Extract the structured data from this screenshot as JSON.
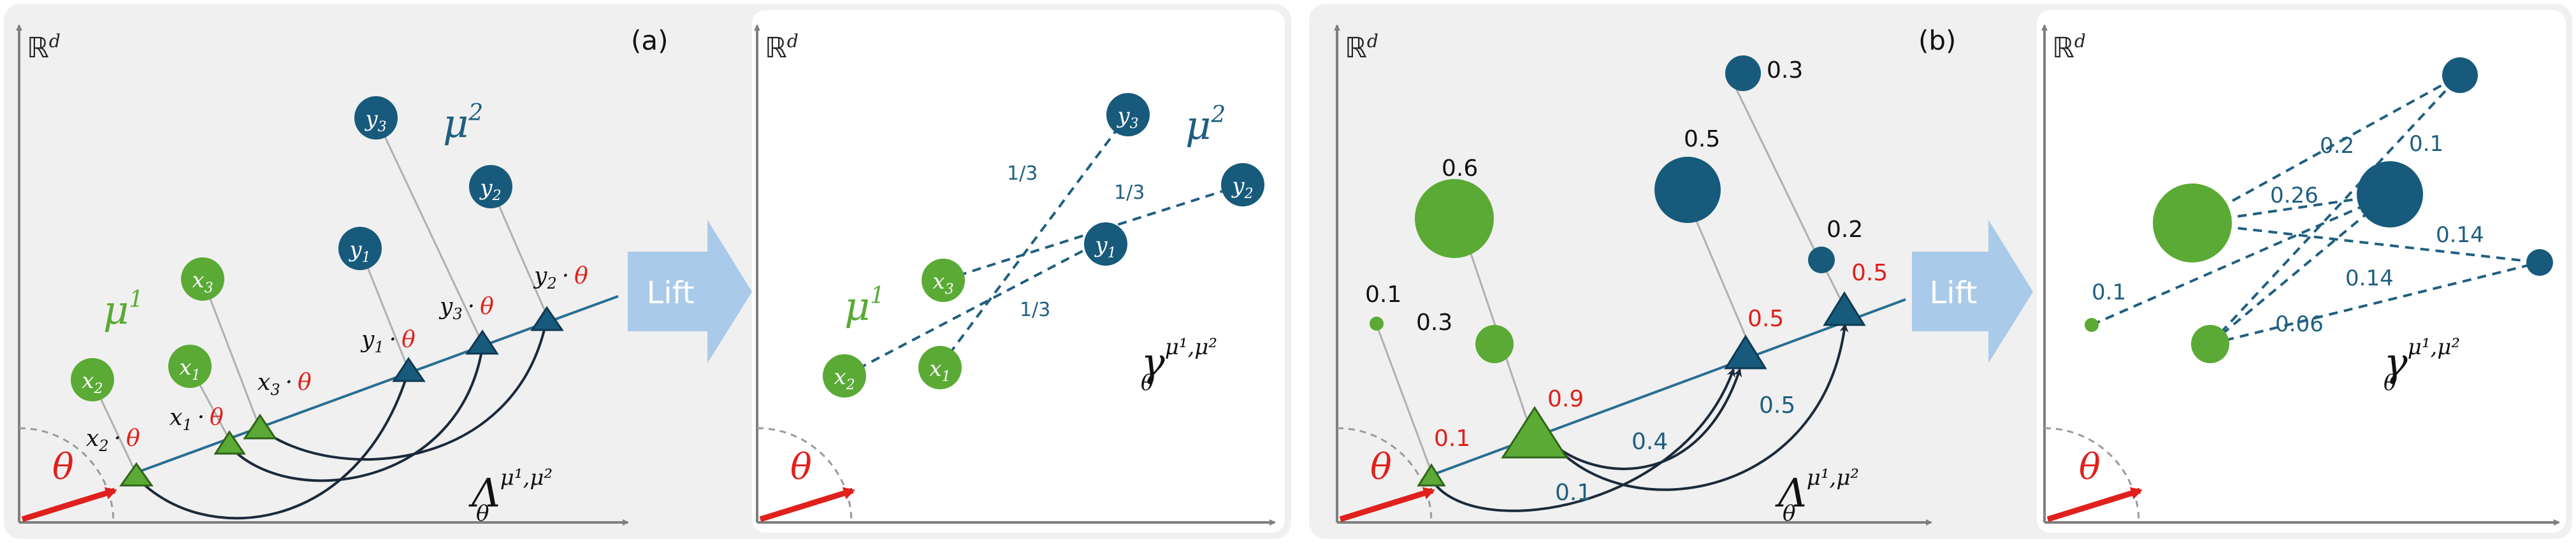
{
  "panel_a": {
    "tag": "(a)",
    "space_label": "ℝ",
    "space_exp": "d",
    "theta": "θ",
    "mu1": "μ",
    "mu1_sup": "1",
    "mu2": "μ",
    "mu2_sup": "2",
    "x_points": [
      {
        "label": "x",
        "sub": "2"
      },
      {
        "label": "x",
        "sub": "1"
      },
      {
        "label": "x",
        "sub": "3"
      }
    ],
    "y_points": [
      {
        "label": "y",
        "sub": "1"
      },
      {
        "label": "y",
        "sub": "3"
      },
      {
        "label": "y",
        "sub": "2"
      }
    ],
    "proj_x": [
      {
        "v": "x",
        "s": "2",
        "dot": "·",
        "th": "θ"
      },
      {
        "v": "x",
        "s": "1",
        "dot": "·",
        "th": "θ"
      },
      {
        "v": "x",
        "s": "3",
        "dot": "·",
        "th": "θ"
      }
    ],
    "proj_y": [
      {
        "v": "y",
        "s": "1",
        "dot": "·",
        "th": "θ"
      },
      {
        "v": "y",
        "s": "3",
        "dot": "·",
        "th": "θ"
      },
      {
        "v": "y",
        "s": "2",
        "dot": "·",
        "th": "θ"
      }
    ],
    "lift": "Lift",
    "Lambda": "Λ",
    "Lambda_sub": "θ",
    "Lambda_sup": "μ¹,μ²",
    "right": {
      "space_label": "ℝ",
      "space_exp": "d",
      "theta": "θ",
      "mu1": "μ",
      "mu1_sup": "1",
      "mu2": "μ",
      "mu2_sup": "2",
      "x_points": [
        {
          "label": "x",
          "sub": "3"
        },
        {
          "label": "x",
          "sub": "2"
        },
        {
          "label": "x",
          "sub": "1"
        }
      ],
      "y_points": [
        {
          "label": "y",
          "sub": "3"
        },
        {
          "label": "y",
          "sub": "2"
        },
        {
          "label": "y",
          "sub": "1"
        }
      ],
      "weights": [
        "1/3",
        "1/3",
        "1/3"
      ],
      "gamma": "γ",
      "gamma_sub": "θ",
      "gamma_sup": "μ¹,μ²"
    }
  },
  "panel_b": {
    "tag": "(b)",
    "space_label": "ℝ",
    "space_exp": "d",
    "theta": "θ",
    "x_masses": [
      "0.1",
      "0.6",
      "0.3"
    ],
    "y_masses": [
      "0.3",
      "0.5",
      "0.2"
    ],
    "proj_x_masses": [
      "0.1",
      "0.9"
    ],
    "proj_y_masses": [
      "0.5",
      "0.5"
    ],
    "flows": [
      "0.1",
      "0.4",
      "0.5"
    ],
    "lift": "Lift",
    "Lambda": "Λ",
    "Lambda_sub": "θ",
    "Lambda_sup": "μ¹,μ²",
    "right": {
      "space_label": "ℝ",
      "space_exp": "d",
      "theta": "θ",
      "weights": [
        "0.2",
        "0.1",
        "0.26",
        "0.14",
        "0.1",
        "0.14",
        "0.06"
      ],
      "gamma": "γ",
      "gamma_sub": "θ",
      "gamma_sup": "μ¹,μ²"
    }
  },
  "colors": {
    "green": "#5aaa35",
    "green_dark": "#3f7f22",
    "blue": "#175a7c",
    "blue_text": "#1f5f80",
    "red": "#e0201c",
    "arrow_fill": "#a9cbe9",
    "panel_bg": "#f0f0f0"
  }
}
